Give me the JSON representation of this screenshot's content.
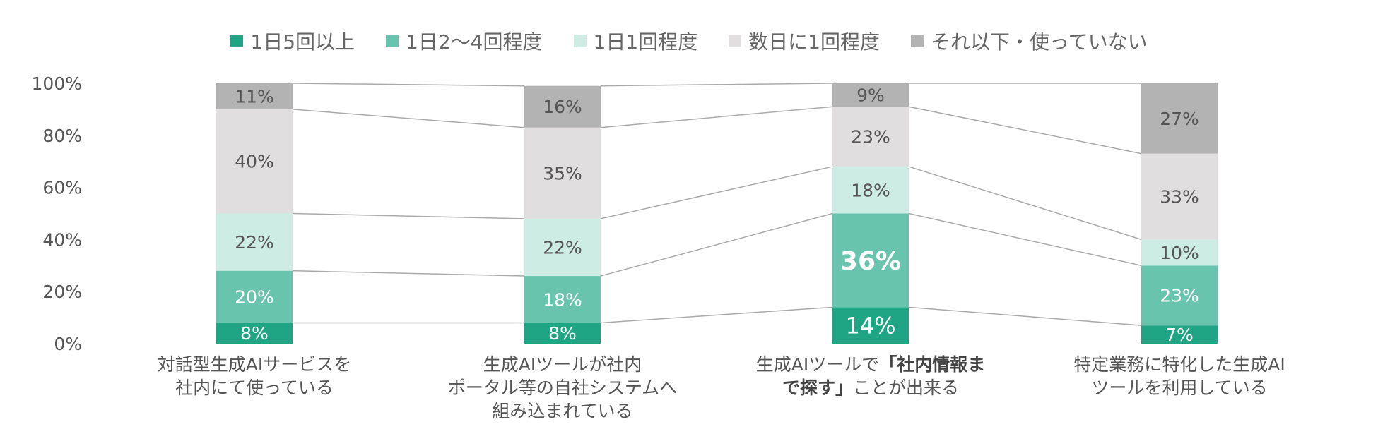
{
  "chart_data": {
    "type": "bar",
    "stacked": true,
    "ylim": [
      0,
      100
    ],
    "y_ticks": [
      "0%",
      "20%",
      "40%",
      "60%",
      "80%",
      "100%"
    ],
    "legend_position": "top",
    "categories": [
      "対話型生成AIサービスを\n社内にて使っている",
      "生成AIツールが社内\nポータル等の自社システムへ\n組み込まれている",
      "生成AIツールで「社内情報ま\nで探す」ことが出来る",
      "特定業務に特化した生成AI\nツールを利用している"
    ],
    "series": [
      {
        "name": "1日5回以上",
        "color": "#1fa584",
        "values": [
          8,
          8,
          14,
          7
        ]
      },
      {
        "name": "1日2～4回程度",
        "color": "#69c4ae",
        "values": [
          20,
          18,
          36,
          23
        ]
      },
      {
        "name": "1日1回程度",
        "color": "#cdece3",
        "values": [
          22,
          22,
          18,
          10
        ]
      },
      {
        "name": "数日に1回程度",
        "color": "#e0dedf",
        "values": [
          40,
          35,
          23,
          33
        ]
      },
      {
        "name": "それ以下・使っていない",
        "color": "#b3b3b3",
        "values": [
          11,
          16,
          9,
          27
        ]
      }
    ],
    "data_labels": [
      [
        "8%",
        "20%",
        "22%",
        "40%",
        "11%"
      ],
      [
        "8%",
        "18%",
        "22%",
        "35%",
        "16%"
      ],
      [
        "14%",
        "36%",
        "18%",
        "23%",
        "9%"
      ],
      [
        "7%",
        "23%",
        "10%",
        "33%",
        "27%"
      ]
    ],
    "emphasis": {
      "category": 2,
      "series": 1
    },
    "connector_lines": true
  },
  "labels": {
    "cat0": "対話型生成AIサービスを 社内にて使っている",
    "cat1": "生成AIツールが社内 ポータル等の自社システムへ 組み込まれている",
    "cat2": "生成AIツールで「社内情報まで探す」ことが出来る",
    "cat3": "特定業務に特化した生成AI ツールを利用している"
  },
  "colors": {
    "axis_text": "#555555",
    "connector": "#aaaaaa",
    "label_light": "#ffffff",
    "label_dark": "#555555"
  }
}
